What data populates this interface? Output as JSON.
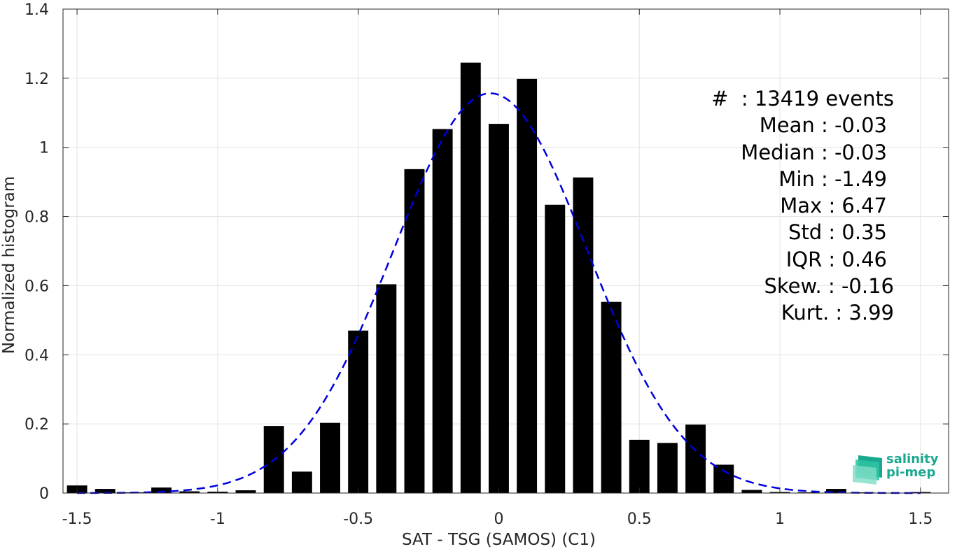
{
  "chart_data": {
    "type": "bar",
    "xlabel": "SAT - TSG (SAMOS) (C1)",
    "ylabel": "Normalized histogram",
    "xlim": [
      -1.55,
      1.6
    ],
    "ylim": [
      0,
      1.4
    ],
    "xticks": [
      -1.5,
      -1,
      -0.5,
      0,
      0.5,
      1,
      1.5
    ],
    "xtick_labels": [
      "-1.5",
      "-1",
      "-0.5",
      "0",
      "0.5",
      "1",
      "1.5"
    ],
    "yticks": [
      0,
      0.2,
      0.4,
      0.6,
      0.8,
      1,
      1.2,
      1.4
    ],
    "ytick_labels": [
      "0",
      "0.2",
      "0.4",
      "0.6",
      "0.8",
      "1",
      "1.2",
      "1.4"
    ],
    "grid": true,
    "bin_width": 0.1,
    "x": [
      -1.5,
      -1.4,
      -1.3,
      -1.2,
      -1.1,
      -1.0,
      -0.9,
      -0.8,
      -0.7,
      -0.6,
      -0.5,
      -0.4,
      -0.3,
      -0.2,
      -0.1,
      0.0,
      0.1,
      0.2,
      0.3,
      0.4,
      0.5,
      0.6,
      0.7,
      0.8,
      0.9,
      1.0,
      1.1,
      1.2,
      1.3,
      1.4,
      1.5
    ],
    "values": [
      0.022,
      0.012,
      0.002,
      0.016,
      0.005,
      0.004,
      0.008,
      0.194,
      0.062,
      0.203,
      0.47,
      0.604,
      0.937,
      1.053,
      1.245,
      1.068,
      1.198,
      0.834,
      0.913,
      0.553,
      0.154,
      0.145,
      0.198,
      0.082,
      0.009,
      0.003,
      0.002,
      0.012,
      0.002,
      0.001,
      0.003
    ],
    "fit": {
      "style": "dashed",
      "color": "#0000dd",
      "mean": -0.03,
      "std": 0.345
    },
    "bar_color": "#000000"
  },
  "stats": [
    "#  : 13419 events",
    "Mean : -0.03",
    "Median : -0.03",
    "Min : -1.49",
    "Max : 6.47",
    "Std : 0.35",
    "IQR : 0.46",
    "Skew. : -0.16",
    "Kurt. : 3.99"
  ],
  "logo": {
    "line1": "salinity",
    "line2": "pi-mep"
  }
}
